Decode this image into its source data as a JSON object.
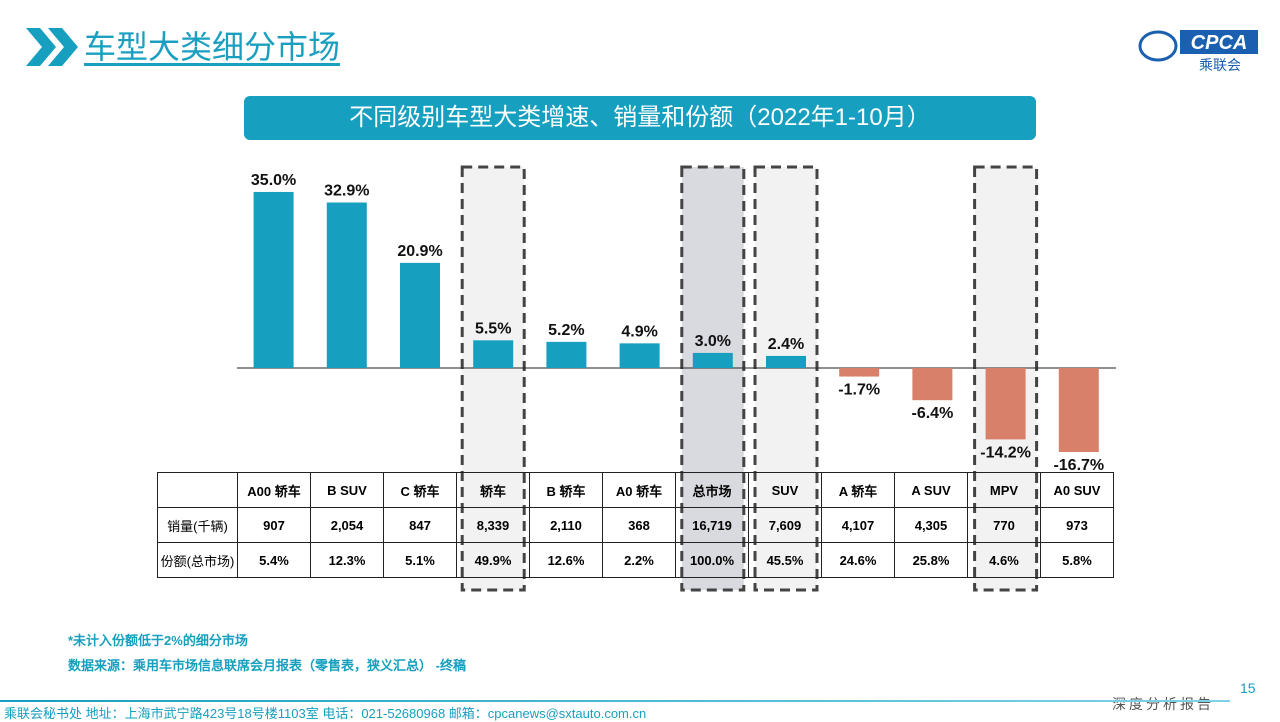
{
  "header": {
    "title": "车型大类细分市场",
    "logo_text": "CPCA",
    "logo_sub": "乘联会",
    "logo_icon": "cpca-logo"
  },
  "chart_data": {
    "type": "bar",
    "title": "不同级别车型大类增速、销量和份额（2022年1-10月）",
    "categories": [
      "A00 轿车",
      "B SUV",
      "C 轿车",
      "轿车",
      "B 轿车",
      "A0 轿车",
      "总市场",
      "SUV",
      "A 轿车",
      "A SUV",
      "MPV",
      "A0 SUV"
    ],
    "values": [
      35.0,
      32.9,
      20.9,
      5.5,
      5.2,
      4.9,
      3.0,
      2.4,
      -1.7,
      -6.4,
      -14.2,
      -16.7
    ],
    "data_labels": [
      "35.0%",
      "32.9%",
      "20.9%",
      "5.5%",
      "5.2%",
      "4.9%",
      "3.0%",
      "2.4%",
      "-1.7%",
      "-6.4%",
      "-14.2%",
      "-16.7%"
    ],
    "highlighted": [
      "轿车",
      "总市场",
      "SUV",
      "MPV"
    ],
    "colors": {
      "positive": "#169fbf",
      "negative": "#d9806a",
      "highlight_fill": "#f2f2f2",
      "total_fill": "#d9d9e0"
    },
    "table": {
      "rows": [
        {
          "label": "销量(千辆)",
          "values": [
            "907",
            "2,054",
            "847",
            "8,339",
            "2,110",
            "368",
            "16,719",
            "7,609",
            "4,107",
            "4,305",
            "770",
            "973"
          ]
        },
        {
          "label": "份额(总市场)",
          "values": [
            "5.4%",
            "12.3%",
            "5.1%",
            "49.9%",
            "12.6%",
            "2.2%",
            "100.0%",
            "45.5%",
            "24.6%",
            "25.8%",
            "4.6%",
            "5.8%"
          ]
        }
      ]
    }
  },
  "notes": [
    "*未计入份额低于2%的细分市场",
    "数据来源：乘用车市场信息联席会月报表（零售表，狭义汇总） -终稿"
  ],
  "footer": {
    "text": "乘联会秘书处   地址：上海市武宁路423号18号楼1103室  电话：021-52680968   邮箱：cpcanews@sxtauto.com.cn",
    "page": "15",
    "tag": "深度分析报告"
  }
}
